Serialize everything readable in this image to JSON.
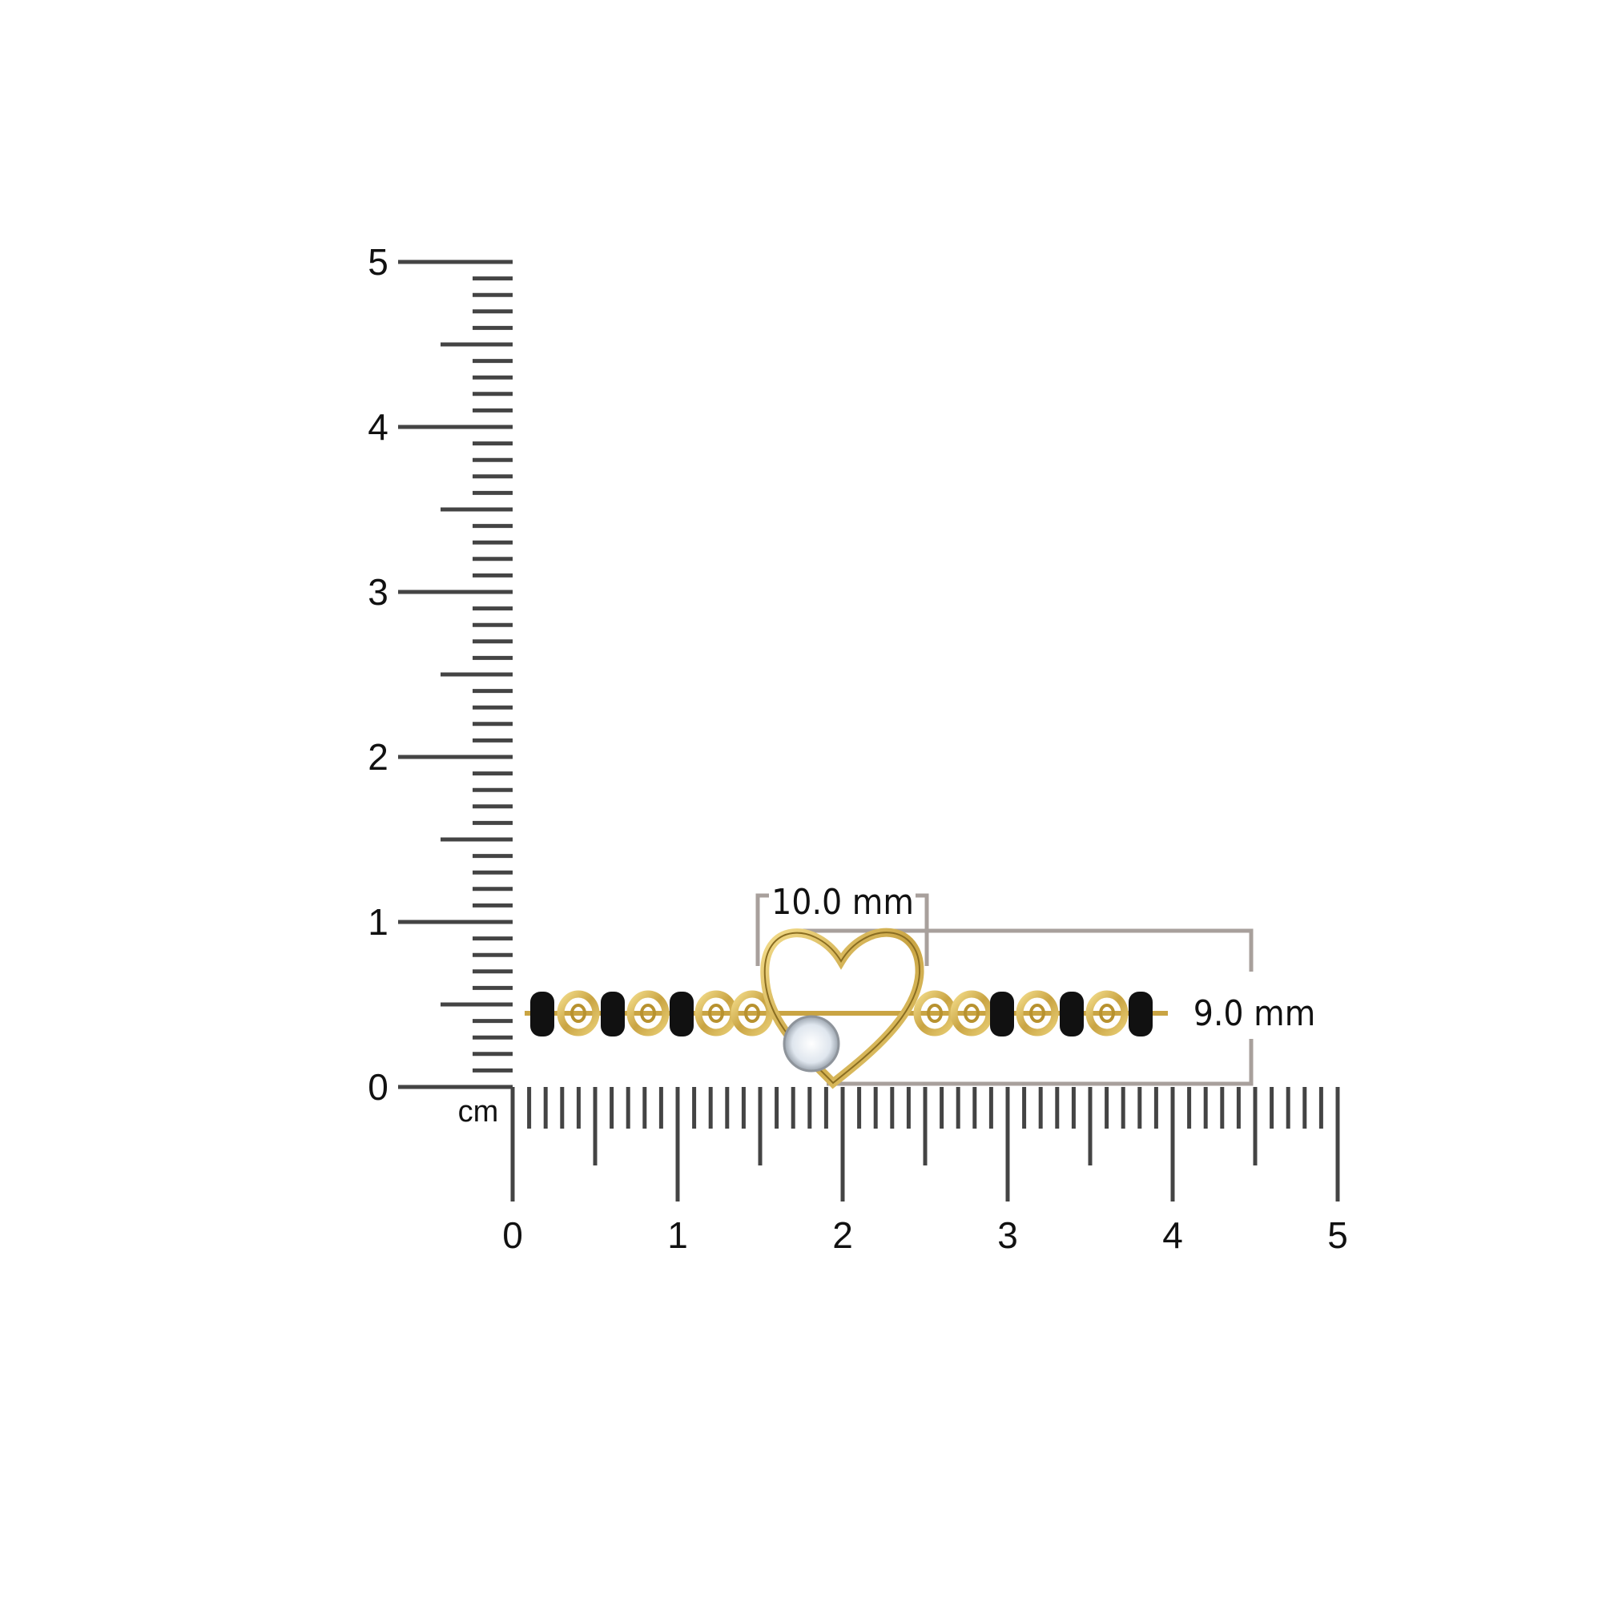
{
  "ruler": {
    "unit": "cm",
    "vertical_labels": [
      "0",
      "1",
      "2",
      "3",
      "4",
      "5"
    ],
    "horizontal_labels": [
      "0",
      "1",
      "2",
      "3",
      "4",
      "5"
    ],
    "tick_color": "#444444"
  },
  "product": {
    "type": "heart pendant bracelet with black beads and solitaire stone",
    "metal_color": "#d9b95a",
    "bead_color": "#111111"
  },
  "dimensions": {
    "width_label": "10.0 mm",
    "height_label": "9.0 mm",
    "line_color": "#a8a09c"
  }
}
